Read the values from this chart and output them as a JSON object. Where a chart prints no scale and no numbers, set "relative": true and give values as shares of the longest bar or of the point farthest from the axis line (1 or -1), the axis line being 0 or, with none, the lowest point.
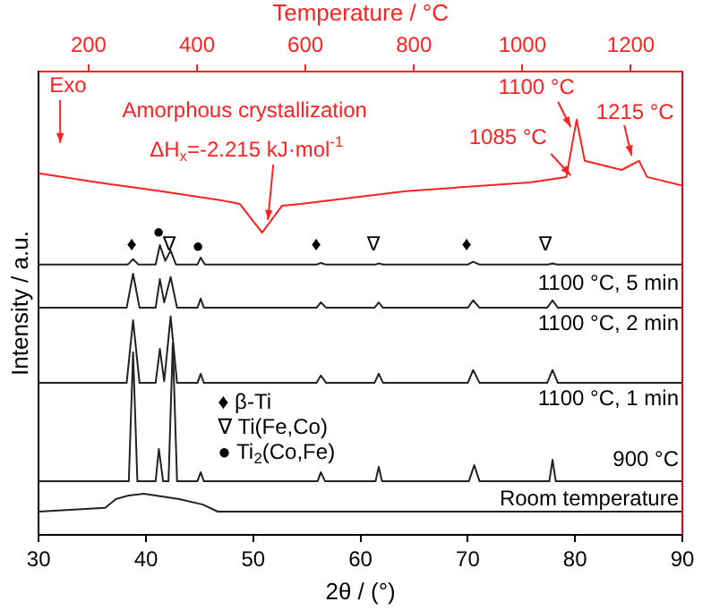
{
  "chart_data": {
    "type": "line",
    "relative": true,
    "xlabel": "2θ / (°)",
    "ylabel": "Intensity / a.u.",
    "x2label": "Temperature / °C",
    "xlim": [
      30,
      90
    ],
    "xticks": [
      30,
      40,
      50,
      60,
      70,
      80,
      90
    ],
    "x2lim": [
      108,
      1295
    ],
    "x2ticks": [
      200,
      400,
      600,
      800,
      1000,
      1200
    ],
    "marker": "none",
    "grid": false,
    "legend": false,
    "series": [
      {
        "axis": "x2",
        "color": "#ff2020",
        "x": [
          108,
          217,
          333,
          445,
          479,
          520,
          557,
          591,
          785,
          1013,
          1081,
          1100,
          1115,
          1183,
          1215,
          1230,
          1295
        ],
        "values": [
          0.871,
          0.849,
          0.828,
          0.806,
          0.797,
          0.728,
          0.793,
          0.797,
          0.828,
          0.849,
          0.862,
          1.0,
          0.901,
          0.879,
          0.901,
          0.862,
          0.841
        ]
      },
      {
        "name": "1100 °C, 5 min",
        "color": "#222222",
        "x": [
          30,
          38.3,
          38.8,
          39.3,
          40.9,
          41.3,
          41.8,
          42.3,
          42.8,
          44.8,
          45.1,
          45.5,
          55.9,
          56.3,
          56.8,
          61.4,
          61.7,
          62.1,
          70.0,
          70.5,
          71.1,
          77.5,
          77.9,
          78.3,
          90
        ],
        "values": [
          0.651,
          0.651,
          0.664,
          0.651,
          0.651,
          0.698,
          0.66,
          0.685,
          0.651,
          0.651,
          0.668,
          0.651,
          0.651,
          0.655,
          0.651,
          0.651,
          0.654,
          0.651,
          0.651,
          0.658,
          0.651,
          0.651,
          0.654,
          0.651,
          0.651
        ]
      },
      {
        "name": "1100 °C, 2 min",
        "color": "#222222",
        "x": [
          30,
          38.2,
          38.8,
          39.4,
          40.9,
          41.3,
          41.7,
          42.3,
          42.9,
          44.8,
          45.1,
          45.4,
          55.9,
          56.3,
          56.8,
          61.3,
          61.7,
          62.1,
          70.0,
          70.5,
          71.1,
          77.4,
          77.9,
          78.4,
          90
        ],
        "values": [
          0.547,
          0.547,
          0.629,
          0.547,
          0.547,
          0.616,
          0.56,
          0.621,
          0.547,
          0.547,
          0.569,
          0.547,
          0.547,
          0.56,
          0.547,
          0.547,
          0.56,
          0.547,
          0.547,
          0.565,
          0.547,
          0.547,
          0.565,
          0.547,
          0.547
        ]
      },
      {
        "name": "1100 °C, 1 min",
        "color": "#222222",
        "x": [
          30,
          38.2,
          38.8,
          39.4,
          40.9,
          41.3,
          41.7,
          42.3,
          42.9,
          44.8,
          45.1,
          45.4,
          55.9,
          56.3,
          56.8,
          61.3,
          61.7,
          62.1,
          70.0,
          70.5,
          71.1,
          77.4,
          77.9,
          78.4,
          90
        ],
        "values": [
          0.366,
          0.366,
          0.517,
          0.366,
          0.366,
          0.448,
          0.37,
          0.526,
          0.366,
          0.366,
          0.388,
          0.366,
          0.366,
          0.384,
          0.366,
          0.366,
          0.388,
          0.366,
          0.366,
          0.397,
          0.366,
          0.366,
          0.397,
          0.366,
          0.366
        ]
      },
      {
        "name": "900 °C",
        "color": "#222222",
        "x": [
          30,
          38.4,
          38.8,
          39.2,
          40.9,
          41.2,
          41.6,
          42.1,
          42.5,
          42.9,
          44.8,
          45.1,
          45.4,
          56.0,
          56.3,
          56.7,
          61.4,
          61.7,
          62.0,
          70.1,
          70.6,
          71.1,
          77.6,
          77.9,
          78.2,
          90
        ],
        "values": [
          0.129,
          0.129,
          0.44,
          0.129,
          0.129,
          0.207,
          0.129,
          0.129,
          0.461,
          0.129,
          0.129,
          0.151,
          0.129,
          0.129,
          0.151,
          0.129,
          0.129,
          0.164,
          0.129,
          0.129,
          0.168,
          0.129,
          0.129,
          0.181,
          0.129,
          0.129
        ]
      },
      {
        "name": "Room temperature",
        "color": "#222222",
        "x": [
          30,
          36.2,
          37.2,
          38.4,
          39.8,
          43.1,
          45.3,
          46.7,
          90
        ],
        "values": [
          0.056,
          0.065,
          0.086,
          0.095,
          0.099,
          0.086,
          0.073,
          0.056,
          0.056
        ]
      }
    ],
    "annotations": [
      "Exo",
      "Amorphous crystallization",
      "ΔH$_{x}$=-2.215 kJ·mol$^{-1}$",
      "1085 °C",
      "1100 °C",
      "1215 °C",
      "♦ β-Ti",
      "∇ Ti(Fe,Co)",
      "● Ti$_{2}$(Co,Fe)",
      "♦",
      "●",
      "∇",
      "●",
      "♦",
      "∇",
      "♦",
      "∇"
    ]
  }
}
